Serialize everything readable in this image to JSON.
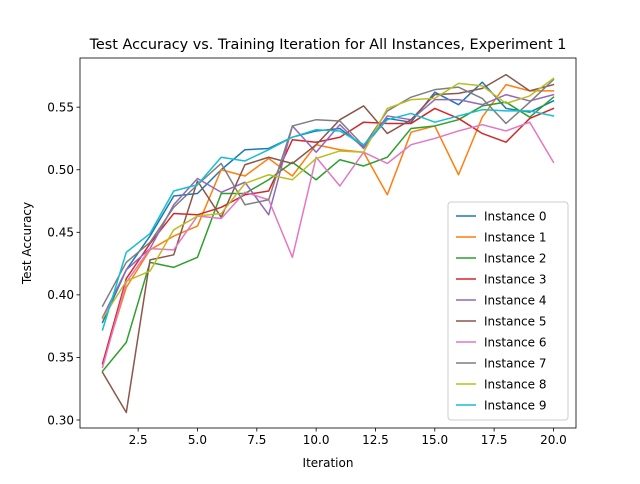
{
  "chart_data": {
    "type": "line",
    "title": "Test Accuracy vs. Training Iteration for All Instances, Experiment 1",
    "xlabel": "Iteration",
    "ylabel": "Test Accuracy",
    "xlim": [
      0.05,
      20.95
    ],
    "ylim": [
      0.2936,
      0.5893
    ],
    "xticks": [
      2.5,
      5.0,
      7.5,
      10.0,
      12.5,
      15.0,
      17.5,
      20.0
    ],
    "xtick_labels": [
      "2.5",
      "5.0",
      "7.5",
      "10.0",
      "12.5",
      "15.0",
      "17.5",
      "20.0"
    ],
    "yticks": [
      0.3,
      0.35,
      0.4,
      0.45,
      0.5,
      0.55
    ],
    "ytick_labels": [
      "0.30",
      "0.35",
      "0.40",
      "0.45",
      "0.50",
      "0.55"
    ],
    "grid": false,
    "legend_position": "lower right",
    "x": [
      1,
      2,
      3,
      4,
      5,
      6,
      7,
      8,
      9,
      10,
      11,
      12,
      13,
      14,
      15,
      16,
      17,
      18,
      19,
      20
    ],
    "series": [
      {
        "name": "Instance 0",
        "color": "#1f77b4",
        "values": [
          0.378,
          0.42,
          0.447,
          0.479,
          0.481,
          0.5,
          0.516,
          0.517,
          0.526,
          0.531,
          0.533,
          0.518,
          0.541,
          0.538,
          0.562,
          0.552,
          0.57,
          0.549,
          0.546,
          0.555
        ]
      },
      {
        "name": "Instance 1",
        "color": "#ff7f0e",
        "values": [
          0.345,
          0.406,
          0.436,
          0.447,
          0.455,
          0.5,
          0.495,
          0.509,
          0.495,
          0.52,
          0.516,
          0.514,
          0.48,
          0.53,
          0.535,
          0.496,
          0.542,
          0.568,
          0.563,
          0.563
        ]
      },
      {
        "name": "Instance 2",
        "color": "#2ca02c",
        "values": [
          0.339,
          0.362,
          0.426,
          0.422,
          0.43,
          0.481,
          0.481,
          0.492,
          0.506,
          0.492,
          0.508,
          0.503,
          0.51,
          0.533,
          0.535,
          0.54,
          0.551,
          0.554,
          0.542,
          0.558
        ]
      },
      {
        "name": "Instance 3",
        "color": "#d62728",
        "values": [
          0.345,
          0.413,
          0.441,
          0.465,
          0.464,
          0.47,
          0.48,
          0.483,
          0.524,
          0.522,
          0.526,
          0.538,
          0.537,
          0.537,
          0.549,
          0.541,
          0.529,
          0.522,
          0.541,
          0.549
        ]
      },
      {
        "name": "Instance 4",
        "color": "#9467bd",
        "values": [
          0.382,
          0.42,
          0.437,
          0.472,
          0.493,
          0.482,
          0.49,
          0.464,
          0.535,
          0.514,
          0.536,
          0.517,
          0.543,
          0.54,
          0.556,
          0.556,
          0.552,
          0.56,
          0.555,
          0.56
        ]
      },
      {
        "name": "Instance 5",
        "color": "#8c564b",
        "values": [
          0.338,
          0.306,
          0.428,
          0.432,
          0.491,
          0.462,
          0.504,
          0.51,
          0.505,
          0.52,
          0.54,
          0.551,
          0.529,
          0.54,
          0.56,
          0.561,
          0.565,
          0.576,
          0.563,
          0.568
        ]
      },
      {
        "name": "Instance 6",
        "color": "#e377c2",
        "values": [
          0.342,
          0.41,
          0.437,
          0.436,
          0.463,
          0.461,
          0.482,
          0.476,
          0.43,
          0.51,
          0.487,
          0.514,
          0.505,
          0.52,
          0.525,
          0.531,
          0.536,
          0.531,
          0.538,
          0.506
        ]
      },
      {
        "name": "Instance 7",
        "color": "#7f7f7f",
        "values": [
          0.391,
          0.426,
          0.442,
          0.47,
          0.488,
          0.505,
          0.472,
          0.476,
          0.535,
          0.54,
          0.539,
          0.519,
          0.547,
          0.558,
          0.564,
          0.566,
          0.557,
          0.537,
          0.554,
          0.572
        ]
      },
      {
        "name": "Instance 8",
        "color": "#bcbd22",
        "values": [
          0.381,
          0.411,
          0.419,
          0.452,
          0.463,
          0.465,
          0.489,
          0.496,
          0.492,
          0.509,
          0.515,
          0.514,
          0.549,
          0.556,
          0.557,
          0.569,
          0.567,
          0.553,
          0.559,
          0.573
        ]
      },
      {
        "name": "Instance 9",
        "color": "#17becf",
        "values": [
          0.372,
          0.434,
          0.449,
          0.483,
          0.488,
          0.51,
          0.507,
          0.516,
          0.526,
          0.532,
          0.531,
          0.52,
          0.54,
          0.545,
          0.538,
          0.543,
          0.548,
          0.547,
          0.547,
          0.543
        ]
      }
    ]
  }
}
